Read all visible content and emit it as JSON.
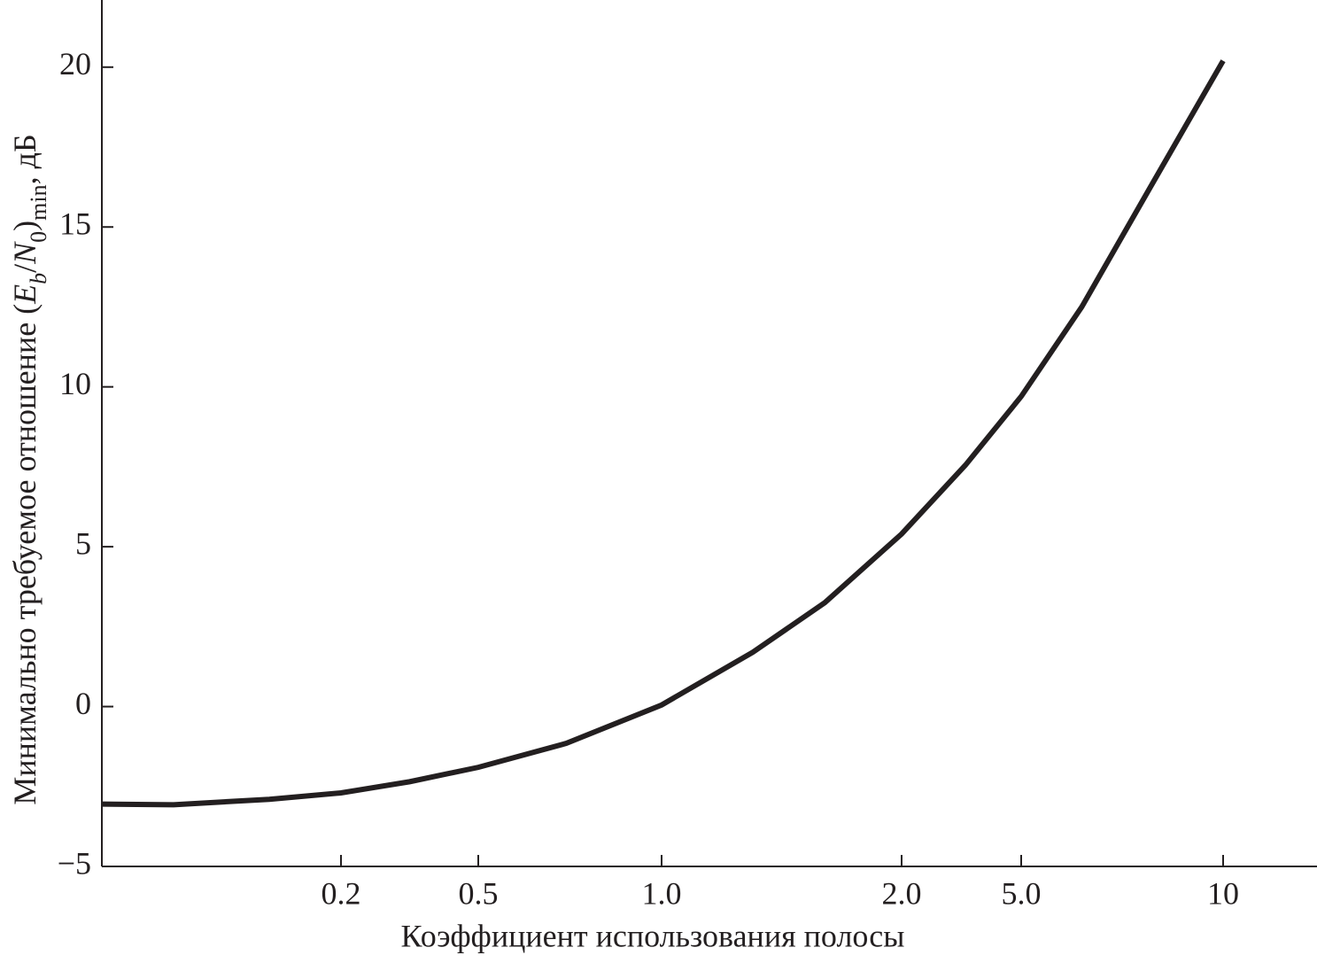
{
  "chart_data": {
    "type": "line",
    "xlabel": "Коэффициент использования полосы",
    "ylabel_parts": [
      "Минимально требуемое отношение (",
      "E",
      "b",
      "/",
      "N",
      "0",
      ")",
      "min",
      ", дБ"
    ],
    "x": [
      0,
      0.06,
      0.14,
      0.2,
      0.35,
      0.5,
      0.74,
      1.0,
      1.38,
      1.68,
      2.0,
      3.6,
      5.0,
      6.5,
      8.2,
      10
    ],
    "series": [
      {
        "color": "#231f20",
        "values": [
          -3.05,
          -3.07,
          -2.9,
          -2.7,
          -2.35,
          -1.9,
          -1.15,
          0.05,
          1.7,
          3.25,
          5.4,
          7.55,
          9.7,
          12.5,
          16.25,
          20.2
        ]
      }
    ],
    "xlim": [
      0,
      12
    ],
    "xticks": [
      0.2,
      0.5,
      {
        "value": 1,
        "label": "1.0"
      },
      {
        "value": 2,
        "label": "2.0"
      },
      {
        "value": 5,
        "label": "5.0"
      },
      10
    ],
    "ylim": [
      -5,
      22.1
    ],
    "yticks": [
      {
        "value": -5,
        "label": "−5"
      },
      0,
      5,
      10,
      15,
      20
    ]
  }
}
